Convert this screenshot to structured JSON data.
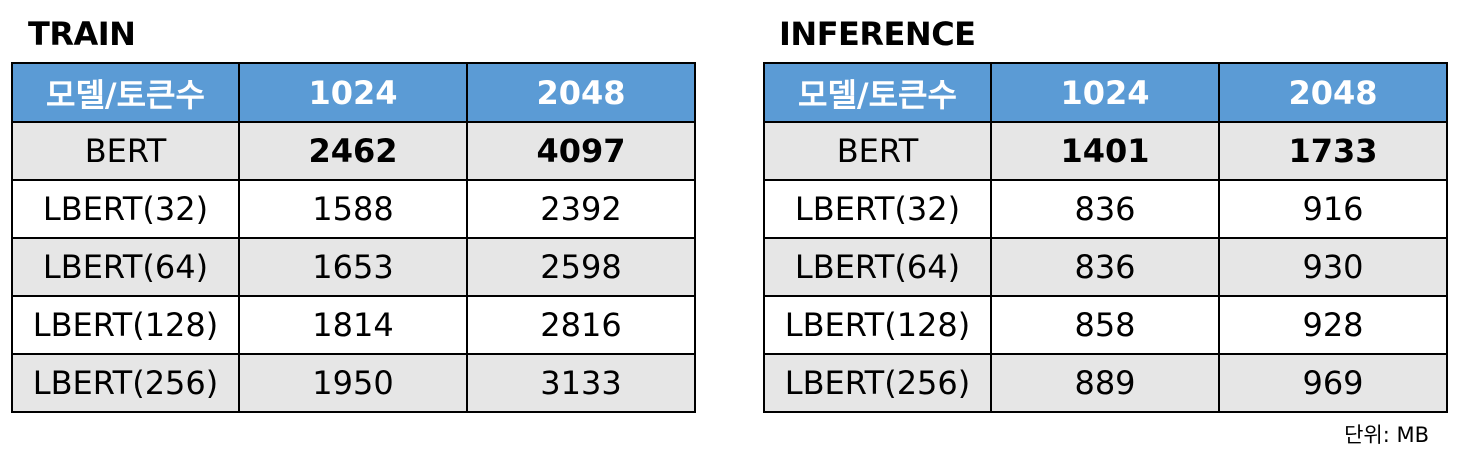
{
  "chart_data": [
    {
      "type": "table",
      "title": "TRAIN",
      "columns": [
        "모델/토큰수",
        "1024",
        "2048"
      ],
      "rows": [
        {
          "model": "BERT",
          "values": [
            "2462",
            "4097"
          ],
          "bold": true
        },
        {
          "model": "LBERT(32)",
          "values": [
            "1588",
            "2392"
          ],
          "bold": false
        },
        {
          "model": "LBERT(64)",
          "values": [
            "1653",
            "2598"
          ],
          "bold": false
        },
        {
          "model": "LBERT(128)",
          "values": [
            "1814",
            "2816"
          ],
          "bold": false
        },
        {
          "model": "LBERT(256)",
          "values": [
            "1950",
            "3133"
          ],
          "bold": false
        }
      ]
    },
    {
      "type": "table",
      "title": "INFERENCE",
      "columns": [
        "모델/토큰수",
        "1024",
        "2048"
      ],
      "rows": [
        {
          "model": "BERT",
          "values": [
            "1401",
            "1733"
          ],
          "bold": true
        },
        {
          "model": "LBERT(32)",
          "values": [
            "836",
            "916"
          ],
          "bold": false
        },
        {
          "model": "LBERT(64)",
          "values": [
            "836",
            "930"
          ],
          "bold": false
        },
        {
          "model": "LBERT(128)",
          "values": [
            "858",
            "928"
          ],
          "bold": false
        },
        {
          "model": "LBERT(256)",
          "values": [
            "889",
            "969"
          ],
          "bold": false
        }
      ]
    }
  ],
  "unit_note": "단위: MB",
  "colors": {
    "header_bg": "#5b9bd5",
    "header_text": "#ffffff",
    "shaded_row_bg": "#e6e6e6",
    "plain_row_bg": "#ffffff",
    "border": "#000000"
  }
}
